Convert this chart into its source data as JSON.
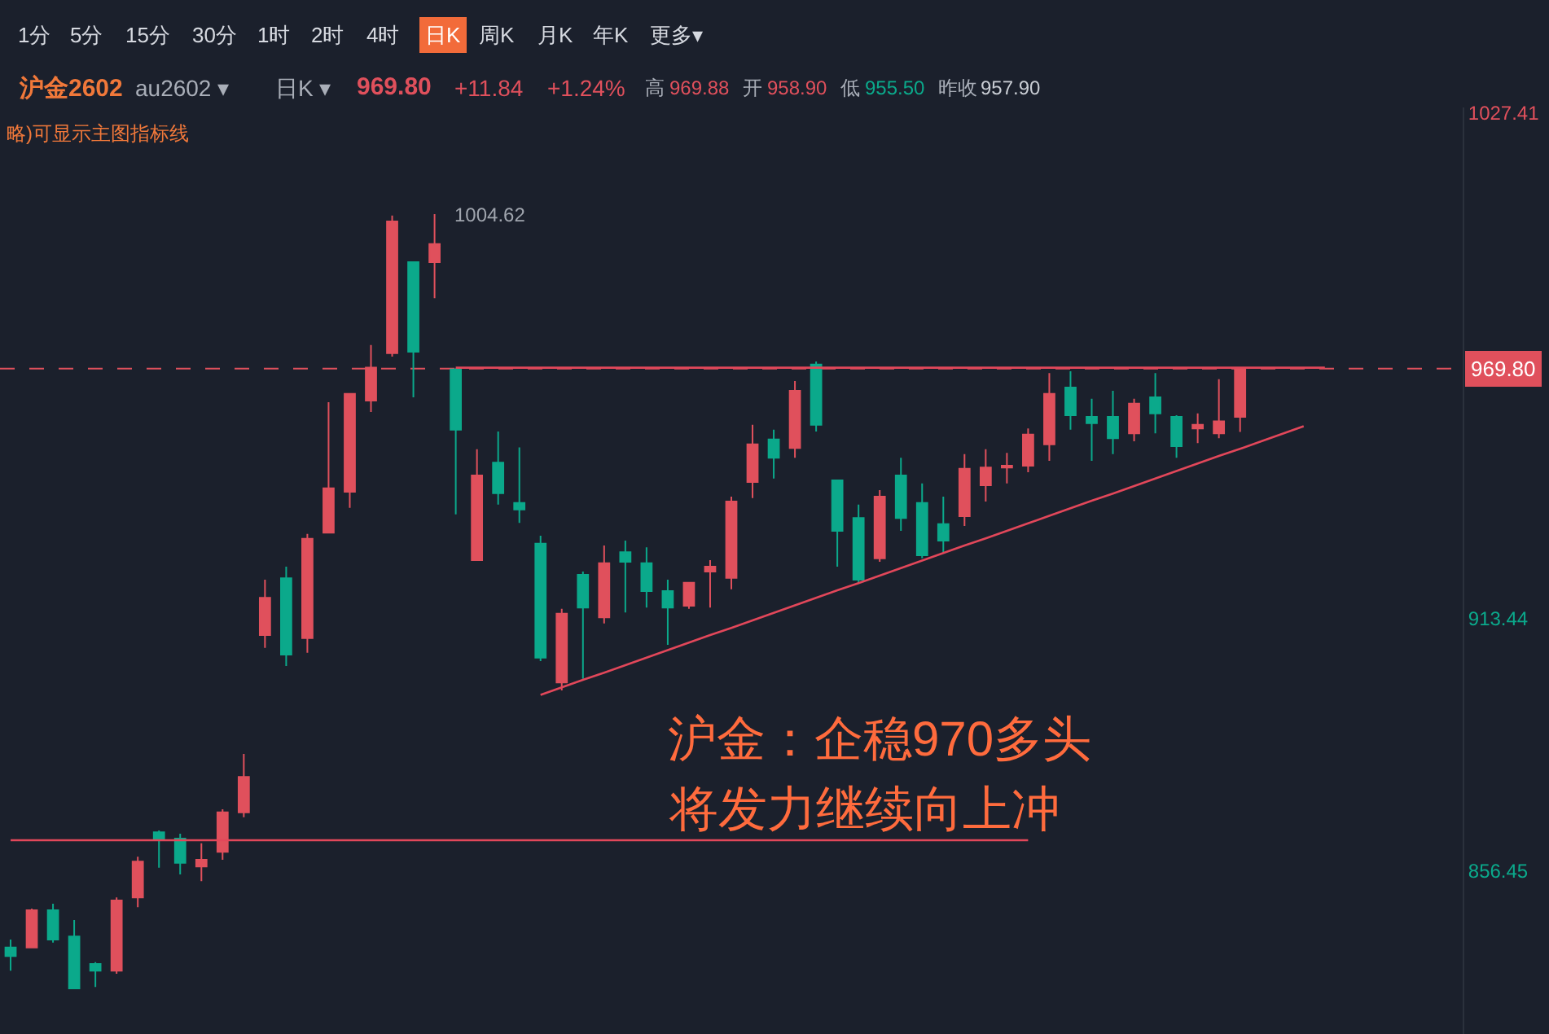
{
  "chart_data": {
    "type": "candlestick",
    "categories": [
      null,
      null,
      null,
      null,
      null,
      null,
      null,
      null,
      null,
      null,
      null,
      null,
      null,
      null,
      null,
      null,
      null,
      null,
      null,
      null,
      null,
      null,
      null,
      null,
      null,
      null,
      null,
      null,
      null,
      null,
      null,
      null,
      null,
      null,
      null,
      null,
      null,
      null,
      null,
      null,
      null,
      null,
      null,
      null,
      null,
      null,
      null,
      null,
      null,
      null,
      null,
      null,
      null,
      null,
      null,
      null,
      null,
      null,
      null,
      null,
      null,
      null,
      null,
      null,
      null,
      null,
      null,
      null,
      null
    ],
    "ohlc": [
      [
        839.2,
        841.0,
        834.0,
        837.3
      ],
      [
        839.2,
        848.0,
        839.2,
        847.6
      ],
      [
        847.6,
        849.1,
        840.3,
        841.0
      ],
      [
        841.7,
        845.4,
        830.0,
        830.0
      ],
      [
        835.5,
        835.9,
        830.3,
        834.0
      ],
      [
        834.0,
        850.5,
        833.3,
        849.8
      ],
      [
        850.5,
        859.7,
        848.3,
        858.6
      ],
      [
        865.2,
        865.6,
        857.2,
        863.4
      ],
      [
        863.8,
        864.9,
        855.7,
        858.3
      ],
      [
        857.5,
        862.7,
        854.2,
        859.0
      ],
      [
        860.8,
        870.4,
        859.0,
        869.7
      ],
      [
        869.7,
        882.9,
        868.6,
        877.7
      ],
      [
        909.7,
        922.2,
        906.8,
        918.1
      ],
      [
        922.5,
        925.1,
        902.7,
        905.3
      ],
      [
        909.0,
        932.5,
        905.7,
        931.4
      ],
      [
        932.8,
        962.2,
        932.8,
        942.8
      ],
      [
        942.0,
        964.1,
        938.4,
        964.1
      ],
      [
        962.6,
        975.1,
        960.0,
        970.0
      ],
      [
        973.3,
        1004.3,
        972.5,
        1003.0
      ],
      [
        993.8,
        993.8,
        963.3,
        973.6
      ],
      [
        993.8,
        1004.62,
        985.7,
        997.9
      ],
      [
        969.6,
        969.9,
        936.9,
        956.0
      ],
      [
        926.6,
        951.6,
        926.6,
        945.7
      ],
      [
        948.6,
        955.6,
        939.1,
        941.7
      ],
      [
        939.5,
        952.0,
        935.0,
        938.0
      ],
      [
        930.3,
        932.1,
        903.8,
        904.6
      ],
      [
        899.0,
        915.6,
        897.2,
        914.5
      ],
      [
        923.3,
        924.0,
        899.8,
        915.9
      ],
      [
        913.7,
        929.9,
        912.3,
        925.9
      ],
      [
        928.4,
        931.0,
        914.8,
        926.2
      ],
      [
        925.9,
        929.5,
        915.9,
        919.6
      ],
      [
        919.6,
        922.2,
        907.5,
        915.9
      ],
      [
        916.3,
        921.5,
        915.6,
        921.5
      ],
      [
        924.0,
        926.6,
        915.9,
        925.1
      ],
      [
        922.6,
        940.9,
        920.0,
        939.8
      ],
      [
        944.2,
        957.1,
        940.6,
        952.7
      ],
      [
        953.8,
        956.0,
        945.0,
        949.7
      ],
      [
        951.9,
        967.0,
        949.7,
        964.8
      ],
      [
        970.7,
        971.4,
        955.6,
        957.1
      ],
      [
        944.6,
        944.6,
        925.1,
        933.2
      ],
      [
        936.1,
        939.1,
        921.4,
        922.2
      ],
      [
        927.0,
        942.4,
        926.2,
        940.9
      ],
      [
        945.7,
        949.7,
        933.2,
        936.1
      ],
      [
        939.5,
        943.9,
        927.0,
        927.7
      ],
      [
        934.7,
        940.9,
        928.4,
        931.0
      ],
      [
        936.5,
        950.5,
        934.3,
        947.2
      ],
      [
        943.5,
        951.6,
        939.8,
        947.5
      ],
      [
        947.5,
        950.8,
        943.9,
        947.9
      ],
      [
        947.9,
        956.3,
        946.4,
        954.9
      ],
      [
        952.7,
        968.8,
        949.0,
        964.1
      ],
      [
        965.5,
        969.2,
        956.0,
        959.3
      ],
      [
        958.9,
        963.0,
        949.0,
        957.5
      ],
      [
        958.9,
        964.8,
        950.5,
        954.1
      ],
      [
        955.2,
        963.0,
        953.4,
        961.9
      ],
      [
        963.3,
        968.8,
        955.2,
        959.7
      ],
      [
        958.9,
        959.3,
        949.7,
        952.3
      ],
      [
        956.3,
        959.7,
        953.0,
        957.1
      ],
      [
        955.2,
        967.4,
        954.1,
        957.9
      ],
      [
        958.9,
        969.88,
        955.5,
        969.8
      ],
      null,
      null,
      null,
      null,
      null,
      null,
      null,
      null,
      null,
      null
    ],
    "colors": [
      "#0ba98b",
      "#e0505c",
      "#0ba98b",
      "#0ba98b",
      "#0ba98b",
      "#e0505c",
      "#e0505c",
      "#0ba98b",
      "#0ba98b",
      "#e0505c",
      "#e0505c",
      "#e0505c",
      "#e0505c",
      "#0ba98b",
      "#e0505c",
      "#e0505c",
      "#e0505c",
      "#e0505c",
      "#e0505c",
      "#0ba98b",
      "#e0505c",
      "#0ba98b",
      "#e0505c",
      "#0ba98b",
      "#0ba98b",
      "#0ba98b",
      "#e0505c",
      "#0ba98b",
      "#e0505c",
      "#0ba98b",
      "#0ba98b",
      "#0ba98b",
      "#e0505c",
      "#e0505c",
      "#e0505c",
      "#e0505c",
      "#0ba98b",
      "#e0505c",
      "#0ba98b",
      "#0ba98b",
      "#0ba98b",
      "#e0505c",
      "#0ba98b",
      "#0ba98b",
      "#0ba98b",
      "#e0505c",
      "#e0505c",
      "#e0505c",
      "#e0505c",
      "#e0505c",
      "#0ba98b",
      "#0ba98b",
      "#0ba98b",
      "#e0505c",
      "#0ba98b",
      "#0ba98b",
      "#e0505c",
      "#e0505c",
      "#e0505c",
      null,
      null,
      null,
      null,
      null,
      null,
      null,
      null,
      null,
      null
    ],
    "series": [
      {
        "type": "line",
        "color": "#e2475a",
        "values": [
          null,
          null,
          null,
          null,
          null,
          null,
          null,
          null,
          null,
          null,
          null,
          null,
          null,
          null,
          null,
          null,
          null,
          null,
          null,
          null,
          null,
          null,
          null,
          null,
          null,
          896.2,
          897.9,
          899.6,
          901.2,
          902.9,
          904.6,
          906.3,
          908.0,
          909.7,
          911.3,
          913.0,
          914.7,
          916.4,
          918.1,
          919.8,
          921.4,
          923.1,
          924.8,
          926.5,
          928.2,
          929.9,
          931.5,
          933.2,
          934.9,
          936.6,
          938.3,
          940.0,
          941.6,
          943.3,
          945.0,
          946.7,
          948.4,
          950.1,
          951.7,
          953.4,
          955.1,
          956.8,
          null,
          null,
          null,
          null,
          null,
          null,
          null
        ]
      },
      {
        "type": "line",
        "color": "#e2475a",
        "values": [
          null,
          null,
          null,
          null,
          null,
          null,
          null,
          null,
          null,
          null,
          null,
          null,
          null,
          null,
          null,
          null,
          null,
          null,
          null,
          null,
          null,
          970,
          970,
          970,
          970,
          970,
          970,
          970,
          970,
          970,
          970,
          970,
          970,
          970,
          970,
          970,
          970,
          970,
          970,
          970,
          970,
          970,
          970,
          970,
          970,
          970,
          970,
          970,
          970,
          970,
          970,
          970,
          970,
          970,
          970,
          970,
          970,
          970,
          970,
          970,
          970,
          970,
          970,
          null,
          null,
          null,
          null,
          null,
          null
        ]
      },
      {
        "type": "line",
        "color": "#e2475a",
        "values": [
          863.4,
          863.4,
          863.4,
          863.4,
          863.4,
          863.4,
          863.4,
          863.4,
          863.4,
          863.4,
          863.4,
          863.4,
          863.4,
          863.4,
          863.4,
          863.4,
          863.4,
          863.4,
          863.4,
          863.4,
          863.4,
          863.4,
          863.4,
          863.4,
          863.4,
          863.4,
          863.4,
          863.4,
          863.4,
          863.4,
          863.4,
          863.4,
          863.4,
          863.4,
          863.4,
          863.4,
          863.4,
          863.4,
          863.4,
          863.4,
          863.4,
          863.4,
          863.4,
          863.4,
          863.4,
          863.4,
          863.4,
          863.4,
          863.4,
          null,
          null,
          null,
          null,
          null,
          null,
          null,
          null,
          null,
          null,
          null,
          null,
          null,
          null,
          null,
          null,
          null,
          null,
          null,
          null
        ]
      }
    ],
    "ylim": [
      819.7,
      1028.7
    ],
    "yticks": [
      1027.41,
      913.44,
      856.45
    ],
    "tick_labels": "y",
    "grid": false,
    "ref_lines": [
      {
        "axis": "y",
        "value": 969.8,
        "label": "969.80",
        "color": "#e0505c",
        "line_style": "dashed"
      }
    ],
    "annotations": [
      "1分",
      "5分",
      "15分",
      "30分",
      "1时",
      "2时",
      "4时",
      "日K",
      "周K",
      "月K",
      "年K",
      "更多▾",
      "沪金2602",
      "au2602 ▾",
      "日K ▾",
      "969.80",
      "+11.84",
      "+1.24%",
      "高",
      "969.88",
      "开",
      "958.90",
      "低",
      "955.50",
      "昨收",
      "957.90",
      "略)可显示主图指标线",
      "沪金：企稳970多头",
      "将发力继续向上冲",
      "1004.62"
    ]
  }
}
